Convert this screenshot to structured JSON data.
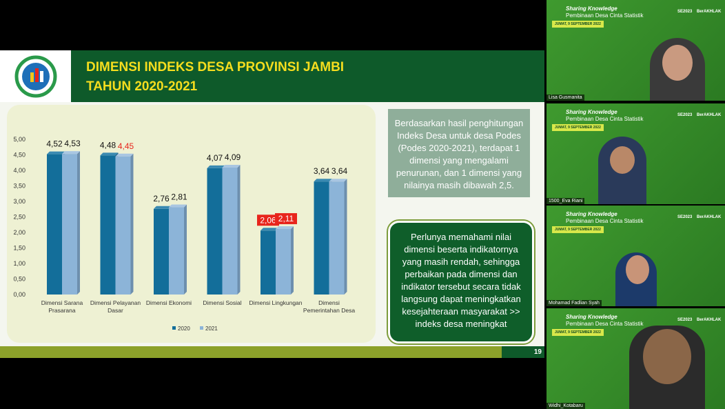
{
  "slide": {
    "title_lines": [
      "DIMENSI INDEKS DESA PROVINSI JAMBI",
      "TAHUN 2020-2021"
    ],
    "chart": {
      "type": "bar",
      "categories": [
        "Dimensi Sarana Prasarana",
        "Dimensi Pelayanan Dasar",
        "Dimensi Ekonomi",
        "Dimensi Sosial",
        "Dimensi Lingkungan",
        "Dimensi Pemerintahan Desa"
      ],
      "series": [
        {
          "name": "2020",
          "color": "#136e9a",
          "values": [
            4.52,
            4.48,
            2.76,
            4.07,
            2.06,
            3.64
          ],
          "value_labels": [
            "4,52",
            "4,48",
            "2,76",
            "4,07",
            "2,06",
            "3,64"
          ],
          "label_colors": [
            "#111111",
            "#111111",
            "#111111",
            "#111111",
            "#ffffff",
            "#111111"
          ],
          "label_backgrounds": [
            null,
            null,
            null,
            null,
            "#e8251c",
            null
          ]
        },
        {
          "name": "2021",
          "color": "#8cb4d8",
          "values": [
            4.53,
            4.45,
            2.81,
            4.09,
            2.11,
            3.64
          ],
          "value_labels": [
            "4,53",
            "4,45",
            "2,81",
            "4,09",
            "2,11",
            "3,64"
          ],
          "label_colors": [
            "#111111",
            "#e8251c",
            "#111111",
            "#111111",
            "#ffffff",
            "#111111"
          ],
          "label_backgrounds": [
            null,
            null,
            null,
            null,
            "#e8251c",
            null
          ]
        }
      ],
      "ylim": [
        0,
        5
      ],
      "yticks": [
        {
          "value": 0,
          "label": "0,00"
        },
        {
          "value": 0.5,
          "label": "0,50"
        },
        {
          "value": 1,
          "label": "1,00"
        },
        {
          "value": 1.5,
          "label": "1,50"
        },
        {
          "value": 2,
          "label": "2,00"
        },
        {
          "value": 2.5,
          "label": "2,50"
        },
        {
          "value": 3,
          "label": "3,00"
        },
        {
          "value": 3.5,
          "label": "3,50"
        },
        {
          "value": 4,
          "label": "4,00"
        },
        {
          "value": 4.5,
          "label": "4,50"
        },
        {
          "value": 5,
          "label": "5,00"
        }
      ],
      "legend": "bottom"
    },
    "note_1": "Berdasarkan hasil penghitungan Indeks Desa untuk desa Podes (Podes 2020-2021), terdapat 1 dimensi yang mengalami penurunan, dan 1 dimensi yang nilainya masih dibawah 2,5.",
    "note_2": "Perlunya memahami nilai dimensi beserta indikatornya yang masih rendah, sehingga perbaikan pada dimensi dan indikator tersebut secara tidak langsung dapat meningkatkan  kesejahteraan masyarakat >> indeks desa meningkat",
    "page_number": "19"
  },
  "banner": {
    "title": "Sharing Knowledge",
    "subtitle": "Pembinaan Desa Cinta Statistik",
    "date": "JUMAT, 9 SEPTEMBER 2022",
    "logo_1": "SE2023",
    "logo_2": "BerAKHLAK"
  },
  "participants": [
    {
      "name": "Lisa Gusmanita"
    },
    {
      "name": "1500_Eva Riani"
    },
    {
      "name": "Mohamad Fadlian Syah"
    },
    {
      "name": "Widhi_Kotabaru"
    }
  ]
}
